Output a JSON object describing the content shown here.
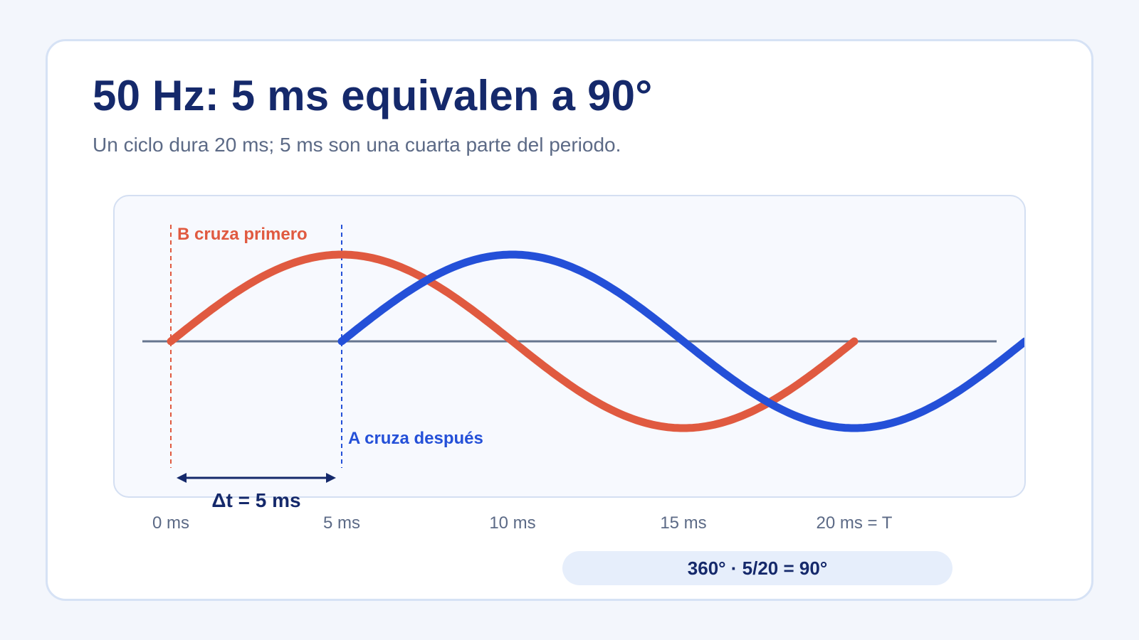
{
  "header": {
    "title": "50 Hz: 5 ms equivalen a 90°",
    "subtitle": "Un ciclo dura 20 ms; 5 ms son una cuarta parte del periodo."
  },
  "chart_data": {
    "type": "line",
    "x_unit": "ms",
    "x_ticks": [
      0,
      5,
      10,
      15,
      20
    ],
    "tick_labels": [
      "0 ms",
      "5 ms",
      "10 ms",
      "15 ms",
      "20 ms = T"
    ],
    "series": [
      {
        "name": "B",
        "color": "#e05a40",
        "start_ms": 0,
        "end_ms": 20,
        "period_ms": 20,
        "amplitude": 1
      },
      {
        "name": "A",
        "color": "#2450d8",
        "start_ms": 5,
        "end_ms": 25,
        "period_ms": 20,
        "amplitude": 1
      }
    ],
    "markers": [
      {
        "x_ms": 0,
        "label": "B cruza primero",
        "color": "#e05a40"
      },
      {
        "x_ms": 5,
        "label": "A cruza después",
        "color": "#2450d8"
      }
    ],
    "delta": {
      "from_ms": 0,
      "to_ms": 5,
      "label": "Δt = 5 ms"
    },
    "axis_color": "#66758f"
  },
  "formula": "360° · 5/20 = 90°"
}
